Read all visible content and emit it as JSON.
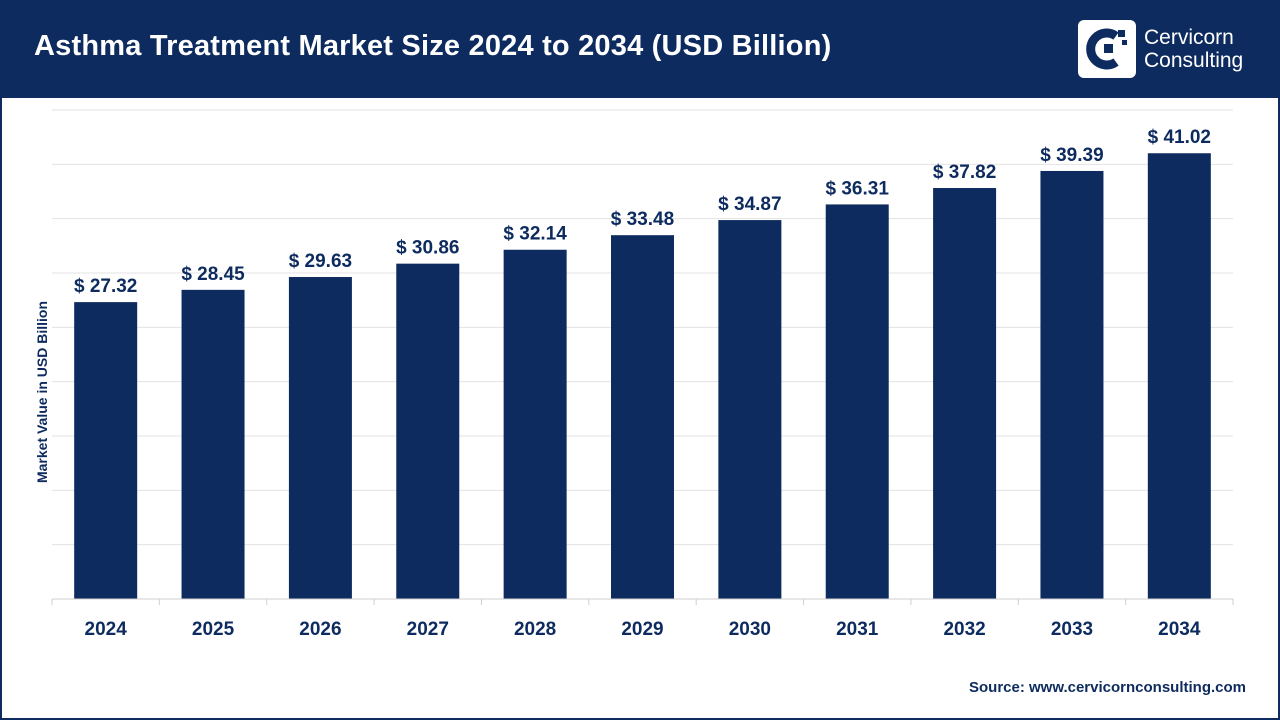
{
  "header": {
    "title": "Asthma Treatment Market Size 2024 to 2034 (USD Billion)",
    "brand_line1": "Cervicorn",
    "brand_line2": "Consulting"
  },
  "footer": {
    "source": "Source: www.cervicornconsulting.com"
  },
  "colors": {
    "brand": "#0d2b5e",
    "bar": "#0d2b5e",
    "grid": "#e3e3e3",
    "label": "#0d2b5e"
  },
  "chart_data": {
    "type": "bar",
    "title": "Asthma Treatment Market Size 2024 to 2034 (USD Billion)",
    "xlabel": "",
    "ylabel": "Market Value in USD Billion",
    "categories": [
      "2024",
      "2025",
      "2026",
      "2027",
      "2028",
      "2029",
      "2030",
      "2031",
      "2032",
      "2033",
      "2034"
    ],
    "values": [
      27.32,
      28.45,
      29.63,
      30.86,
      32.14,
      33.48,
      34.87,
      36.31,
      37.82,
      39.39,
      41.02
    ],
    "data_labels": [
      "$ 27.32",
      "$ 28.45",
      "$ 29.63",
      "$ 30.86",
      "$ 32.14",
      "$ 33.48",
      "$ 34.87",
      "$ 36.31",
      "$ 37.82",
      "$ 39.39",
      "$ 41.02"
    ],
    "ylim": [
      0,
      45
    ],
    "grid": true,
    "legend": "none"
  }
}
